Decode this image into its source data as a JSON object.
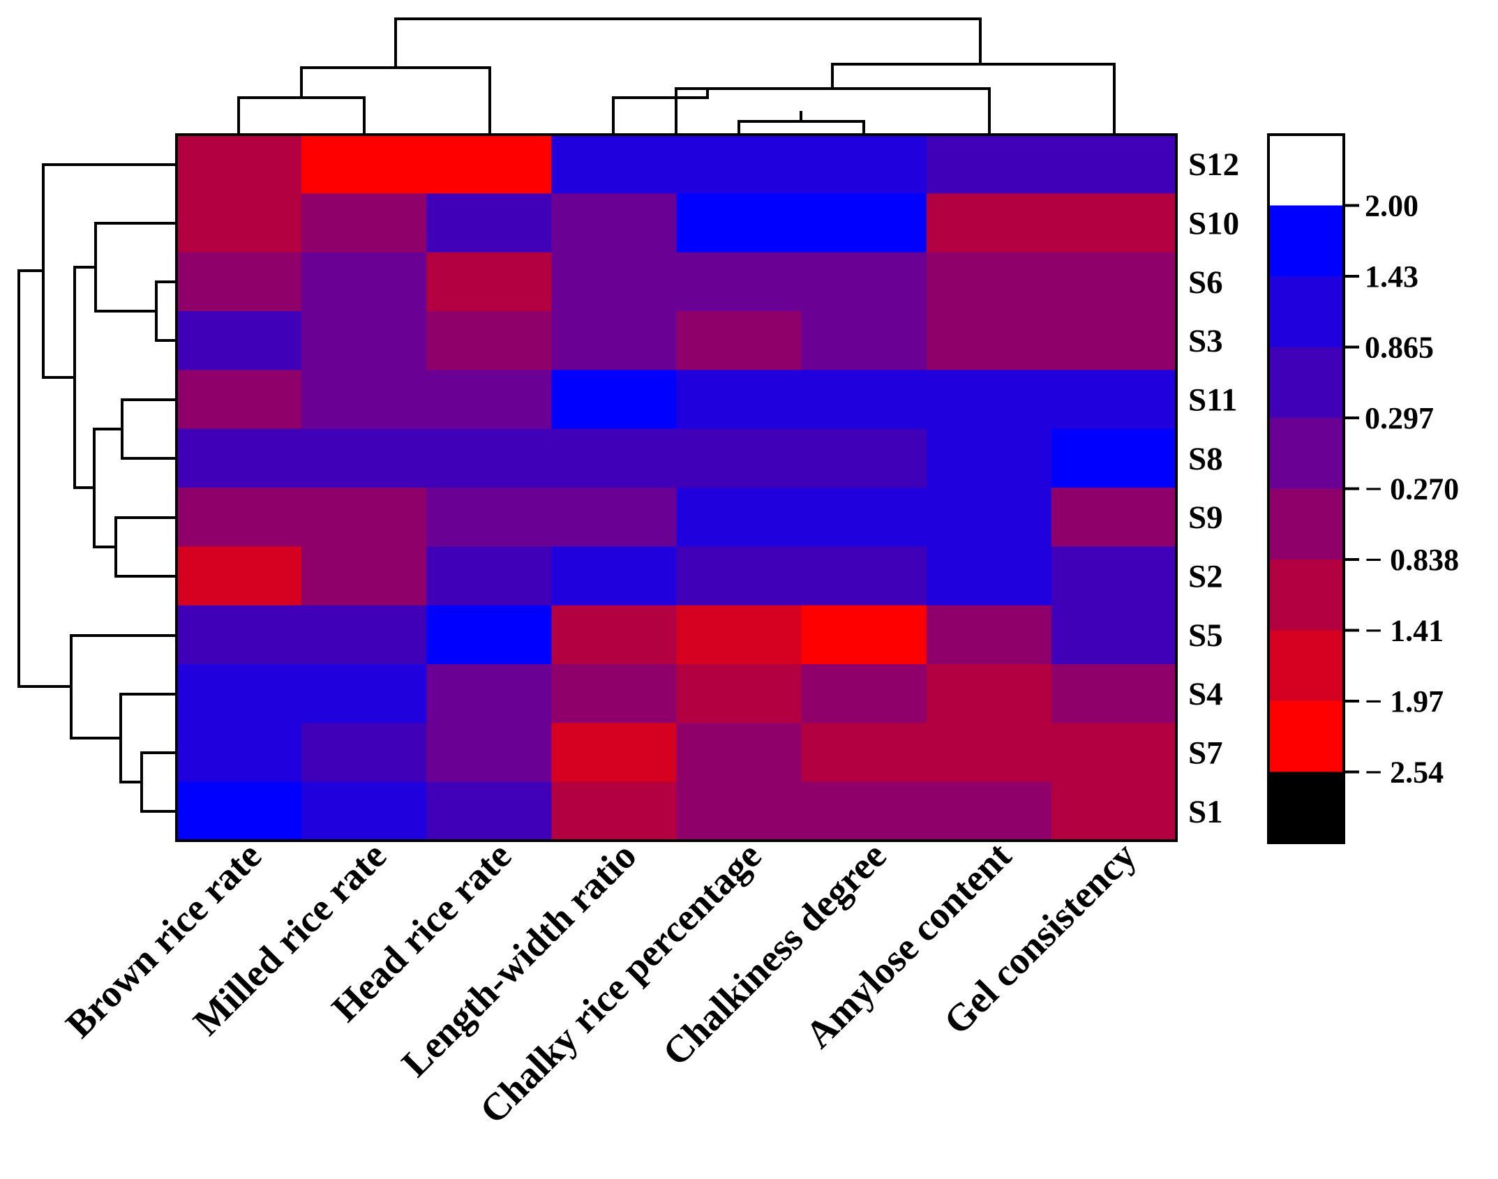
{
  "chart_data": {
    "type": "heatmap",
    "columns": [
      "Brown rice rate",
      "Milled rice rate",
      "Head rice rate",
      "Length-width ratio",
      "Chalky rice percentage",
      "Chalkiness degree",
      "Amylose content",
      "Gel consistency"
    ],
    "rows": [
      "S12",
      "S10",
      "S6",
      "S3",
      "S11",
      "S8",
      "S9",
      "S2",
      "S5",
      "S4",
      "S7",
      "S1"
    ],
    "values": [
      [
        -1.2,
        -2.3,
        -2.3,
        1.2,
        1.2,
        1.2,
        0.6,
        0.6
      ],
      [
        -1.4,
        -0.6,
        0.6,
        0.0,
        1.5,
        1.5,
        -1.4,
        -1.4
      ],
      [
        -0.6,
        0.0,
        -1.4,
        0.0,
        0.0,
        0.1,
        -0.6,
        -0.6
      ],
      [
        0.3,
        0.0,
        -0.6,
        0.0,
        -0.6,
        0.1,
        -0.6,
        -0.6
      ],
      [
        -0.6,
        0.0,
        0.0,
        2.0,
        0.9,
        0.9,
        1.3,
        1.3
      ],
      [
        0.6,
        0.6,
        0.6,
        0.6,
        0.7,
        0.7,
        1.3,
        2.0
      ],
      [
        -0.6,
        -0.6,
        0.0,
        0.0,
        0.9,
        0.9,
        1.3,
        -0.6
      ],
      [
        -1.7,
        -0.6,
        0.6,
        1.3,
        0.7,
        0.7,
        1.3,
        0.6
      ],
      [
        0.6,
        0.6,
        2.0,
        -1.3,
        -1.7,
        -2.3,
        -0.6,
        0.6
      ],
      [
        1.3,
        1.3,
        0.0,
        -0.6,
        -1.3,
        -0.6,
        -1.3,
        -0.6
      ],
      [
        1.3,
        0.6,
        0.0,
        -1.7,
        -0.6,
        -1.3,
        -1.3,
        -1.3
      ],
      [
        2.0,
        1.3,
        0.6,
        -1.3,
        -0.6,
        -0.6,
        -0.6,
        -1.3
      ]
    ],
    "colorbar": {
      "ticks": [
        "2.00",
        "1.43",
        "0.865",
        "0.297",
        "− 0.270",
        "− 0.838",
        "− 1.41",
        "− 1.97",
        "− 2.54"
      ],
      "bands": [
        "#ffffff",
        "#0000ff",
        "#2000dc",
        "#4000b8",
        "#6b0094",
        "#8f006a",
        "#b20040",
        "#d60020",
        "#ff0000",
        "#000000"
      ]
    },
    "row_dendrogram": true,
    "column_dendrogram": true
  }
}
